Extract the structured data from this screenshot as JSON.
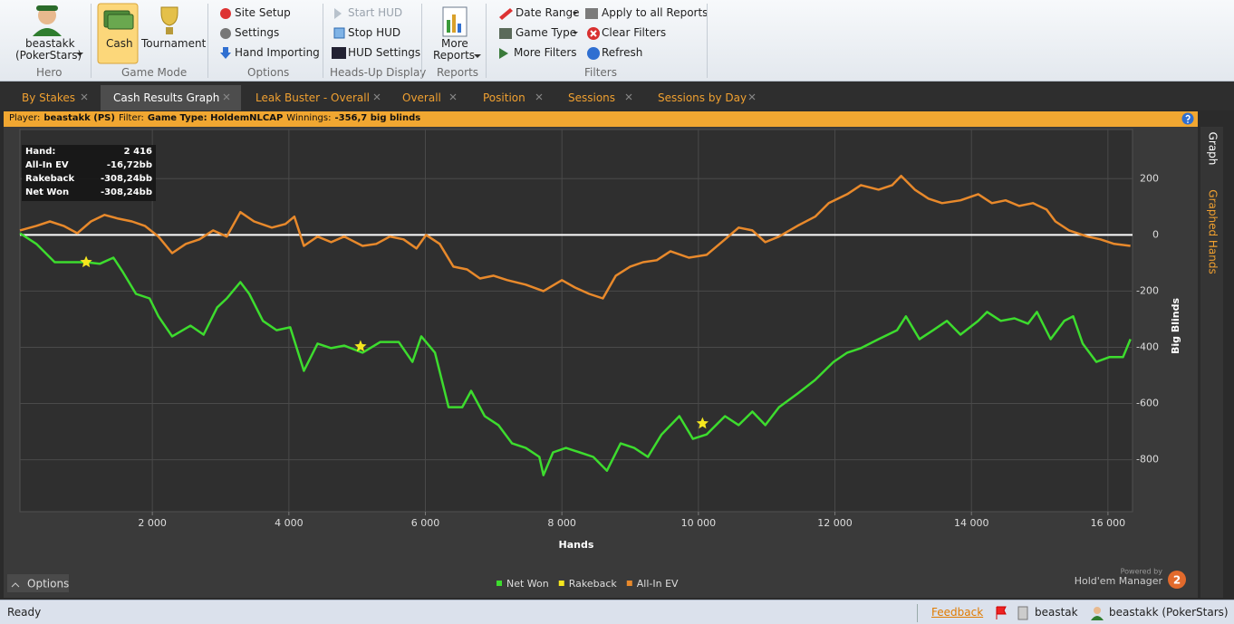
{
  "ribbon": {
    "hero": {
      "name": "beastakk",
      "site": "(PokerStars)",
      "label": "Hero"
    },
    "game_mode": {
      "items": [
        "Cash",
        "Tournament"
      ],
      "label": "Game Mode"
    },
    "options": {
      "items": [
        "Site Setup",
        "Settings",
        "Hand Importing"
      ],
      "label": "Options"
    },
    "hud": {
      "items": [
        "Start HUD",
        "Stop HUD",
        "HUD Settings"
      ],
      "label": "Heads-Up Display"
    },
    "reports": {
      "items": [
        "More",
        "Reports"
      ],
      "label": "Reports"
    },
    "filters": {
      "items": [
        "Date Range",
        "Game Type",
        "More Filters",
        "Apply to all Reports",
        "Clear Filters",
        "Refresh"
      ],
      "label": "Filters"
    }
  },
  "tabs": [
    "By Stakes",
    "Cash Results Graph",
    "Leak Buster - Overall",
    "Overall",
    "Position",
    "Sessions",
    "Sessions by Day"
  ],
  "info_bar": {
    "player_label": "Player:",
    "player": "beastakk (PS)",
    "filter_label": "Filter:",
    "filter": "Game Type: HoldemNLCAP",
    "winnings_label": "Winnings:",
    "winnings": "-356,7 big blinds"
  },
  "tooltip": {
    "rows": [
      [
        "Hand:",
        "2 416"
      ],
      [
        "All-In EV",
        "-16,72bb"
      ],
      [
        "Rakeback",
        "-308,24bb"
      ],
      [
        "Net Won",
        "-308,24bb"
      ]
    ]
  },
  "side_tabs": [
    "Graph",
    "Graphed Hands"
  ],
  "options_button": "Options",
  "branding": {
    "powered_by": "Powered by",
    "product": "Hold'em Manager",
    "version": "2"
  },
  "status_bar": {
    "status": "Ready",
    "feedback": "Feedback",
    "user": "beastak",
    "hero": "beastakk (PokerStars)"
  },
  "chart_data": {
    "type": "line",
    "x_label": "Hands",
    "y_label": "Big Blinds",
    "xlim": [
      60,
      16360
    ],
    "ylim": [
      -985,
      375
    ],
    "xticks": [
      {
        "value": 2000,
        "label": "2 000"
      },
      {
        "value": 4000,
        "label": "4 000"
      },
      {
        "value": 6000,
        "label": "6 000"
      },
      {
        "value": 8000,
        "label": "8 000"
      },
      {
        "value": 10000,
        "label": "10 000"
      },
      {
        "value": 12000,
        "label": "12 000"
      },
      {
        "value": 14000,
        "label": "14 000"
      },
      {
        "value": 16000,
        "label": "16 000"
      }
    ],
    "yticks": [
      200,
      0,
      -200,
      -400,
      -600,
      -800
    ],
    "grid": true,
    "series": [
      {
        "name": "Net Won",
        "color": "#3ddc2e",
        "style": "line",
        "x": [
          60,
          300,
          570,
          830,
          1030,
          1230,
          1430,
          1560,
          1760,
          1960,
          2090,
          2290,
          2560,
          2750,
          2950,
          3090,
          3290,
          3420,
          3620,
          3820,
          4020,
          4220,
          4420,
          4620,
          4810,
          5080,
          5340,
          5610,
          5810,
          5940,
          6140,
          6340,
          6540,
          6670,
          6870,
          7070,
          7270,
          7470,
          7670,
          7730,
          7870,
          8060,
          8260,
          8460,
          8660,
          8860,
          9060,
          9260,
          9460,
          9720,
          9920,
          10120,
          10390,
          10590,
          10790,
          10980,
          11180,
          11450,
          11710,
          11980,
          12180,
          12380,
          12640,
          12910,
          13040,
          13240,
          13440,
          13640,
          13840,
          14100,
          14230,
          14430,
          14630,
          14830,
          14960,
          15160,
          15360,
          15490,
          15630,
          15830,
          16020,
          16220,
          16330
        ],
        "values": [
          6,
          -32,
          -97,
          -97,
          -97,
          -103,
          -81,
          -129,
          -210,
          -226,
          -290,
          -361,
          -323,
          -355,
          -258,
          -226,
          -168,
          -210,
          -306,
          -339,
          -329,
          -484,
          -387,
          -403,
          -394,
          -419,
          -381,
          -381,
          -452,
          -361,
          -419,
          -613,
          -613,
          -555,
          -645,
          -677,
          -742,
          -758,
          -790,
          -855,
          -774,
          -758,
          -774,
          -790,
          -839,
          -742,
          -758,
          -790,
          -710,
          -645,
          -726,
          -710,
          -645,
          -677,
          -629,
          -677,
          -613,
          -565,
          -516,
          -452,
          -419,
          -403,
          -371,
          -339,
          -290,
          -371,
          -339,
          -306,
          -355,
          -306,
          -274,
          -306,
          -297,
          -316,
          -274,
          -371,
          -306,
          -290,
          -387,
          -452,
          -435,
          -435,
          -371
        ]
      },
      {
        "name": "Rakeback",
        "color": "#f5e61e",
        "style": "star",
        "x": [
          1030,
          5050,
          10060
        ],
        "values": [
          -97,
          -397,
          -671
        ]
      },
      {
        "name": "All-In EV",
        "color": "#e8892b",
        "style": "line",
        "x": [
          60,
          300,
          500,
          700,
          900,
          1100,
          1300,
          1500,
          1700,
          1890,
          2090,
          2290,
          2490,
          2690,
          2890,
          3090,
          3290,
          3490,
          3750,
          3950,
          4080,
          4220,
          4420,
          4620,
          4810,
          5080,
          5280,
          5480,
          5680,
          5870,
          6010,
          6210,
          6410,
          6610,
          6800,
          7000,
          7200,
          7470,
          7730,
          8000,
          8190,
          8400,
          8600,
          8790,
          9000,
          9190,
          9390,
          9590,
          9860,
          10120,
          10390,
          10590,
          10790,
          10980,
          11180,
          11450,
          11710,
          11910,
          12180,
          12380,
          12640,
          12840,
          12970,
          13170,
          13370,
          13570,
          13840,
          14100,
          14300,
          14500,
          14700,
          14900,
          15100,
          15230,
          15430,
          15700,
          15890,
          16090,
          16330
        ],
        "values": [
          16,
          32,
          48,
          32,
          6,
          48,
          71,
          58,
          48,
          32,
          -6,
          -65,
          -32,
          -16,
          16,
          -6,
          81,
          48,
          26,
          39,
          65,
          -39,
          -6,
          -26,
          -6,
          -39,
          -32,
          -6,
          -16,
          -48,
          0,
          -32,
          -113,
          -123,
          -155,
          -145,
          -161,
          -177,
          -200,
          -161,
          -187,
          -210,
          -226,
          -145,
          -113,
          -97,
          -90,
          -58,
          -81,
          -71,
          -16,
          26,
          16,
          -26,
          -6,
          32,
          65,
          113,
          145,
          177,
          161,
          177,
          210,
          161,
          129,
          113,
          123,
          145,
          113,
          123,
          103,
          113,
          90,
          48,
          16,
          -6,
          -16,
          -32,
          -39
        ]
      }
    ]
  }
}
